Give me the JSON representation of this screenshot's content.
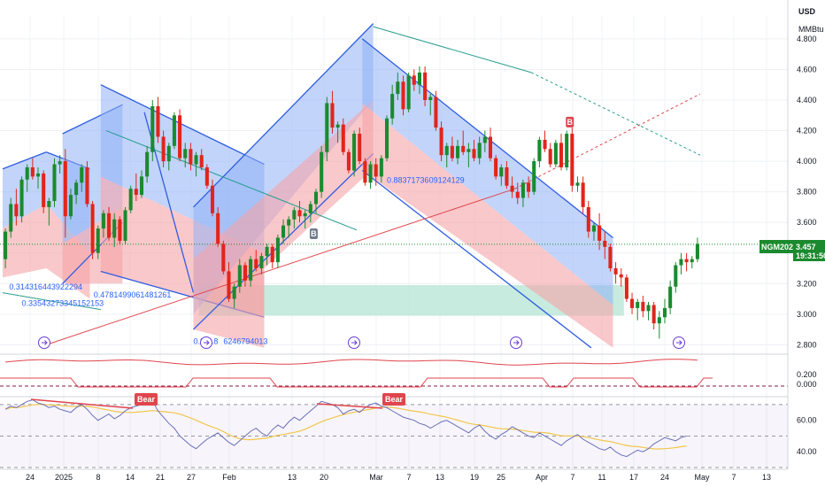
{
  "header": {
    "currency": "USD",
    "unit": "MMBtu"
  },
  "price_tag": {
    "symbol": "NGM2025",
    "price": "3.457",
    "countdown": "19:31:50"
  },
  "colors": {
    "up": "#1b8a2e",
    "down": "#e1251b",
    "channel_blue": "#8fb0f5",
    "channel_red": "#f5a3a8",
    "line_blue": "#2f5ee0",
    "teal_zone": "#b9e6d6",
    "stoch": "#e0454d",
    "rsi": "#6a6fb8",
    "rsi_ma": "#f2c64c",
    "bear": "#e0454d"
  },
  "chart_data": {
    "type": "candlestick",
    "y_axis": {
      "ticks": [
        "2.800",
        "3.000",
        "3.200",
        "3.400",
        "3.600",
        "3.800",
        "4.000",
        "4.200",
        "4.400",
        "4.600",
        "4.800"
      ],
      "ylim": [
        2.75,
        4.95
      ]
    },
    "x_axis": {
      "ticks": [
        "24",
        "2025",
        "8",
        "14",
        "21",
        "27",
        "Feb",
        "13",
        "20",
        "Mar",
        "7",
        "13",
        "19",
        "25",
        "Apr",
        "7",
        "11",
        "17",
        "24",
        "May",
        "7",
        "13"
      ]
    },
    "last_price": 3.457,
    "fib_labels": [
      {
        "text": "0.314316443922294",
        "x_index": 1.2,
        "price": 3.16
      },
      {
        "text": "0.33543273345152153",
        "x_index": 3.5,
        "price": 3.055
      },
      {
        "text": "0.4781499061481261",
        "x_index": 16.7,
        "price": 3.11
      },
      {
        "text": "0.8837173609124129",
        "x_index": 70.5,
        "price": 3.858
      },
      {
        "text": "0.8",
        "x_index": 35.0,
        "price": 2.805
      },
      {
        "text": "0.8",
        "x_index": 37.5,
        "price": 2.805
      },
      {
        "text": "6246794013",
        "x_index": 40.5,
        "price": 2.805
      }
    ],
    "markers": [
      {
        "type": "B",
        "x_index": 57,
        "price": 3.52
      },
      {
        "type": "B",
        "x_index": 104,
        "price": 4.25
      }
    ],
    "candles": [
      [
        3.36,
        3.56,
        3.3,
        3.54
      ],
      [
        3.54,
        3.76,
        3.5,
        3.72
      ],
      [
        3.72,
        3.82,
        3.58,
        3.64
      ],
      [
        3.64,
        3.9,
        3.6,
        3.88
      ],
      [
        3.88,
        3.98,
        3.8,
        3.96
      ],
      [
        3.96,
        4.02,
        3.88,
        3.9
      ],
      [
        3.9,
        3.96,
        3.82,
        3.92
      ],
      [
        3.92,
        3.94,
        3.66,
        3.7
      ],
      [
        3.7,
        3.76,
        3.58,
        3.74
      ],
      [
        3.74,
        4.02,
        3.7,
        3.98
      ],
      [
        3.98,
        4.04,
        3.92,
        4.0
      ],
      [
        4.0,
        4.08,
        3.5,
        3.64
      ],
      [
        3.64,
        3.82,
        3.62,
        3.78
      ],
      [
        3.78,
        3.88,
        3.72,
        3.86
      ],
      [
        3.86,
        3.98,
        3.8,
        3.96
      ],
      [
        3.96,
        4.0,
        3.7,
        3.72
      ],
      [
        3.72,
        3.74,
        3.36,
        3.4
      ],
      [
        3.4,
        3.58,
        3.36,
        3.56
      ],
      [
        3.56,
        3.68,
        3.5,
        3.66
      ],
      [
        3.66,
        3.7,
        3.48,
        3.5
      ],
      [
        3.5,
        3.66,
        3.44,
        3.62
      ],
      [
        3.62,
        3.64,
        3.46,
        3.48
      ],
      [
        3.48,
        3.7,
        3.46,
        3.68
      ],
      [
        3.68,
        3.84,
        3.66,
        3.82
      ],
      [
        3.82,
        3.92,
        3.74,
        3.78
      ],
      [
        3.78,
        3.94,
        3.76,
        3.9
      ],
      [
        3.9,
        4.1,
        3.86,
        4.06
      ],
      [
        4.06,
        4.4,
        4.0,
        4.36
      ],
      [
        4.36,
        4.42,
        4.12,
        4.16
      ],
      [
        4.16,
        4.2,
        3.96,
        4.0
      ],
      [
        4.0,
        4.12,
        3.94,
        4.1
      ],
      [
        4.1,
        4.32,
        4.08,
        4.3
      ],
      [
        4.3,
        4.34,
        4.0,
        4.02
      ],
      [
        4.02,
        4.12,
        3.96,
        4.08
      ],
      [
        4.08,
        4.12,
        3.94,
        3.98
      ],
      [
        3.98,
        4.06,
        3.9,
        4.04
      ],
      [
        4.04,
        4.08,
        3.94,
        3.96
      ],
      [
        3.96,
        3.98,
        3.82,
        3.84
      ],
      [
        3.84,
        3.88,
        3.64,
        3.66
      ],
      [
        3.66,
        3.7,
        3.44,
        3.46
      ],
      [
        3.46,
        3.48,
        3.26,
        3.28
      ],
      [
        3.28,
        3.34,
        3.08,
        3.1
      ],
      [
        3.1,
        3.2,
        3.04,
        3.18
      ],
      [
        3.18,
        3.36,
        3.14,
        3.32
      ],
      [
        3.32,
        3.34,
        3.18,
        3.22
      ],
      [
        3.22,
        3.38,
        3.18,
        3.36
      ],
      [
        3.36,
        3.42,
        3.28,
        3.3
      ],
      [
        3.3,
        3.4,
        3.26,
        3.38
      ],
      [
        3.38,
        3.46,
        3.32,
        3.44
      ],
      [
        3.44,
        3.46,
        3.3,
        3.34
      ],
      [
        3.34,
        3.52,
        3.3,
        3.5
      ],
      [
        3.5,
        3.62,
        3.46,
        3.58
      ],
      [
        3.58,
        3.64,
        3.5,
        3.62
      ],
      [
        3.62,
        3.7,
        3.56,
        3.68
      ],
      [
        3.68,
        3.74,
        3.6,
        3.64
      ],
      [
        3.64,
        3.68,
        3.56,
        3.66
      ],
      [
        3.66,
        3.74,
        3.6,
        3.72
      ],
      [
        3.72,
        3.82,
        3.66,
        3.8
      ],
      [
        3.8,
        4.1,
        3.76,
        4.06
      ],
      [
        4.06,
        4.42,
        4.0,
        4.38
      ],
      [
        4.38,
        4.46,
        4.18,
        4.22
      ],
      [
        4.22,
        4.26,
        4.12,
        4.24
      ],
      [
        4.24,
        4.28,
        4.04,
        4.06
      ],
      [
        4.06,
        4.08,
        3.92,
        3.94
      ],
      [
        3.94,
        4.2,
        3.9,
        4.18
      ],
      [
        4.18,
        4.22,
        3.98,
        4.0
      ],
      [
        4.0,
        4.02,
        3.84,
        3.86
      ],
      [
        3.86,
        4.0,
        3.82,
        3.98
      ],
      [
        3.98,
        4.02,
        3.84,
        3.9
      ],
      [
        3.9,
        4.04,
        3.86,
        4.02
      ],
      [
        4.02,
        4.3,
        4.0,
        4.28
      ],
      [
        4.28,
        4.5,
        4.24,
        4.44
      ],
      [
        4.44,
        4.58,
        4.4,
        4.52
      ],
      [
        4.52,
        4.56,
        4.3,
        4.34
      ],
      [
        4.34,
        4.58,
        4.32,
        4.56
      ],
      [
        4.56,
        4.6,
        4.46,
        4.5
      ],
      [
        4.5,
        4.62,
        4.44,
        4.58
      ],
      [
        4.58,
        4.62,
        4.36,
        4.4
      ],
      [
        4.4,
        4.44,
        4.3,
        4.42
      ],
      [
        4.42,
        4.46,
        4.2,
        4.22
      ],
      [
        4.22,
        4.26,
        4.0,
        4.04
      ],
      [
        4.04,
        4.12,
        3.96,
        4.1
      ],
      [
        4.1,
        4.16,
        4.0,
        4.02
      ],
      [
        4.02,
        4.14,
        3.98,
        4.1
      ],
      [
        4.1,
        4.2,
        4.04,
        4.06
      ],
      [
        4.06,
        4.12,
        3.96,
        4.08
      ],
      [
        4.08,
        4.14,
        4.0,
        4.02
      ],
      [
        4.02,
        4.16,
        3.98,
        4.12
      ],
      [
        4.12,
        4.2,
        4.06,
        4.16
      ],
      [
        4.16,
        4.22,
        4.0,
        4.02
      ],
      [
        4.02,
        4.04,
        3.88,
        3.9
      ],
      [
        3.9,
        3.98,
        3.84,
        3.96
      ],
      [
        3.96,
        4.0,
        3.82,
        3.84
      ],
      [
        3.84,
        3.9,
        3.76,
        3.8
      ],
      [
        3.8,
        3.86,
        3.72,
        3.76
      ],
      [
        3.76,
        3.88,
        3.7,
        3.86
      ],
      [
        3.86,
        3.9,
        3.76,
        3.8
      ],
      [
        3.8,
        4.02,
        3.78,
        4.0
      ],
      [
        4.0,
        4.16,
        3.96,
        4.14
      ],
      [
        4.14,
        4.2,
        4.06,
        4.08
      ],
      [
        4.08,
        4.12,
        3.96,
        3.98
      ],
      [
        3.98,
        4.14,
        3.96,
        4.12
      ],
      [
        4.12,
        4.18,
        3.94,
        3.96
      ],
      [
        3.96,
        4.2,
        3.94,
        4.18
      ],
      [
        4.18,
        4.22,
        3.8,
        3.84
      ],
      [
        3.84,
        3.9,
        3.8,
        3.86
      ],
      [
        3.86,
        3.9,
        3.66,
        3.7
      ],
      [
        3.7,
        3.74,
        3.5,
        3.54
      ],
      [
        3.54,
        3.6,
        3.48,
        3.58
      ],
      [
        3.58,
        3.66,
        3.42,
        3.48
      ],
      [
        3.48,
        3.54,
        3.36,
        3.44
      ],
      [
        3.44,
        3.46,
        3.28,
        3.3
      ],
      [
        3.3,
        3.34,
        3.2,
        3.26
      ],
      [
        3.26,
        3.3,
        3.18,
        3.24
      ],
      [
        3.24,
        3.26,
        3.08,
        3.1
      ],
      [
        3.1,
        3.14,
        3.0,
        3.04
      ],
      [
        3.04,
        3.1,
        2.96,
        3.08
      ],
      [
        3.08,
        3.12,
        2.98,
        3.02
      ],
      [
        3.02,
        3.08,
        2.96,
        3.06
      ],
      [
        3.06,
        3.08,
        2.9,
        2.94
      ],
      [
        2.94,
        3.02,
        2.84,
        2.98
      ],
      [
        2.98,
        3.1,
        2.94,
        3.04
      ],
      [
        3.04,
        3.22,
        3.0,
        3.18
      ],
      [
        3.18,
        3.34,
        3.14,
        3.32
      ],
      [
        3.32,
        3.4,
        3.26,
        3.36
      ],
      [
        3.36,
        3.4,
        3.28,
        3.34
      ],
      [
        3.34,
        3.38,
        3.3,
        3.36
      ],
      [
        3.36,
        3.5,
        3.34,
        3.46
      ]
    ],
    "stochastic_ticks": [
      "0.200",
      "0.000"
    ],
    "rsi_ticks": [
      "60.00",
      "40.00"
    ],
    "divergence_labels": [
      "Bear",
      "Bear"
    ],
    "rsi_values": [
      67,
      69,
      68,
      70,
      72,
      73,
      71,
      70,
      68,
      69,
      67,
      66,
      65,
      68,
      70,
      67,
      63,
      60,
      62,
      64,
      61,
      63,
      66,
      68,
      69,
      70,
      71,
      72,
      66,
      62,
      58,
      55,
      50,
      47,
      44,
      42,
      45,
      48,
      50,
      52,
      49,
      46,
      44,
      47,
      50,
      53,
      55,
      52,
      50,
      54,
      57,
      55,
      59,
      62,
      60,
      63,
      66,
      69,
      72,
      71,
      70,
      68,
      64,
      66,
      67,
      65,
      68,
      70,
      71,
      69,
      68,
      66,
      64,
      62,
      61,
      60,
      58,
      57,
      55,
      57,
      59,
      60,
      58,
      56,
      54,
      52,
      55,
      57,
      53,
      50,
      48,
      51,
      53,
      56,
      54,
      52,
      50,
      49,
      52,
      50,
      48,
      46,
      44,
      47,
      49,
      51,
      48,
      46,
      44,
      42,
      41,
      43,
      40,
      38,
      37,
      39,
      41,
      40,
      42,
      45,
      47,
      49,
      48,
      47,
      49,
      50
    ]
  }
}
